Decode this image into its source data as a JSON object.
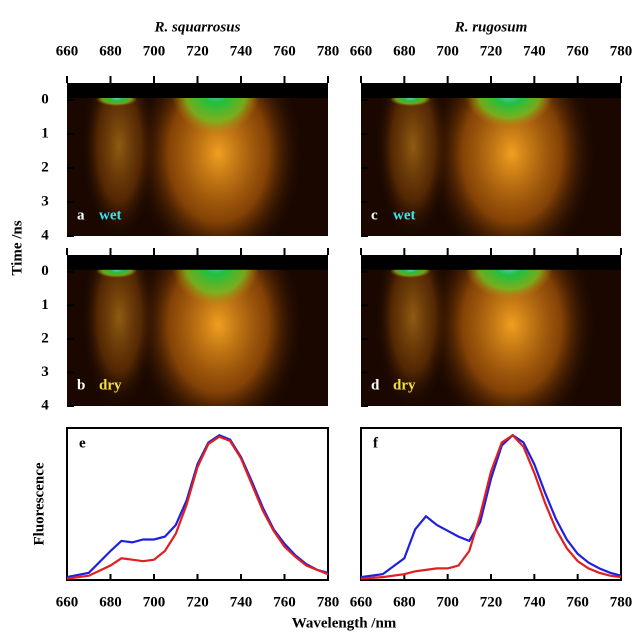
{
  "chart_data": [
    {
      "type": "streak",
      "title": "R. squarrosus",
      "label": "a",
      "condition": "wet",
      "condition_color": "#3fe0f0",
      "ylabel": "Time /ns",
      "xlim": [
        660,
        780
      ],
      "xticks": [
        660,
        680,
        700,
        720,
        740,
        760,
        780
      ],
      "ylim": [
        -0.5,
        4
      ],
      "yticks": [
        0,
        1,
        2,
        3,
        4
      ]
    },
    {
      "type": "streak",
      "label": "b",
      "condition": "dry",
      "condition_color": "#f0e040",
      "xlim": [
        660,
        780
      ],
      "ylim": [
        -0.5,
        4
      ],
      "yticks": [
        0,
        1,
        2,
        3,
        4
      ]
    },
    {
      "type": "streak",
      "title": "R. rugosum",
      "label": "c",
      "condition": "wet",
      "condition_color": "#3fe0f0",
      "xlim": [
        660,
        780
      ],
      "xticks": [
        660,
        680,
        700,
        720,
        740,
        760,
        780
      ],
      "ylim": [
        -0.5,
        4
      ]
    },
    {
      "type": "streak",
      "label": "d",
      "condition": "dry",
      "condition_color": "#f0e040",
      "xlim": [
        660,
        780
      ],
      "ylim": [
        -0.5,
        4
      ]
    },
    {
      "type": "line",
      "label": "e",
      "ylabel": "Fluorescence",
      "xlabel": "Wavelength /nm",
      "x": [
        660,
        670,
        680,
        685,
        690,
        695,
        700,
        705,
        710,
        715,
        720,
        725,
        730,
        735,
        740,
        745,
        750,
        755,
        760,
        765,
        770,
        775,
        780
      ],
      "xlim": [
        660,
        780
      ],
      "xticks": [
        660,
        680,
        700,
        720,
        740,
        760,
        780
      ],
      "ylim": [
        0,
        1.05
      ],
      "series": [
        {
          "color": "#1f1fe0",
          "values": [
            0.02,
            0.05,
            0.2,
            0.27,
            0.26,
            0.28,
            0.28,
            0.3,
            0.38,
            0.55,
            0.8,
            0.95,
            1.0,
            0.97,
            0.85,
            0.68,
            0.5,
            0.35,
            0.25,
            0.17,
            0.11,
            0.07,
            0.05
          ]
        },
        {
          "color": "#e01f1f",
          "values": [
            0.01,
            0.03,
            0.1,
            0.15,
            0.14,
            0.13,
            0.14,
            0.2,
            0.32,
            0.52,
            0.78,
            0.94,
            0.99,
            0.96,
            0.84,
            0.66,
            0.48,
            0.34,
            0.23,
            0.16,
            0.1,
            0.07,
            0.04
          ]
        }
      ]
    },
    {
      "type": "line",
      "label": "f",
      "x": [
        660,
        670,
        680,
        685,
        690,
        695,
        700,
        705,
        710,
        715,
        720,
        725,
        730,
        735,
        740,
        745,
        750,
        755,
        760,
        765,
        770,
        775,
        780
      ],
      "xlim": [
        660,
        780
      ],
      "xticks": [
        660,
        680,
        700,
        720,
        740,
        760,
        780
      ],
      "ylim": [
        0,
        1.05
      ],
      "series": [
        {
          "color": "#1f1fe0",
          "values": [
            0.02,
            0.04,
            0.15,
            0.35,
            0.44,
            0.38,
            0.34,
            0.3,
            0.27,
            0.4,
            0.7,
            0.93,
            1.0,
            0.95,
            0.8,
            0.6,
            0.42,
            0.28,
            0.18,
            0.12,
            0.08,
            0.05,
            0.03
          ]
        },
        {
          "color": "#e01f1f",
          "values": [
            0.01,
            0.02,
            0.04,
            0.06,
            0.07,
            0.08,
            0.08,
            0.1,
            0.2,
            0.45,
            0.75,
            0.95,
            1.0,
            0.92,
            0.74,
            0.53,
            0.35,
            0.22,
            0.13,
            0.08,
            0.05,
            0.03,
            0.02
          ]
        }
      ]
    }
  ]
}
